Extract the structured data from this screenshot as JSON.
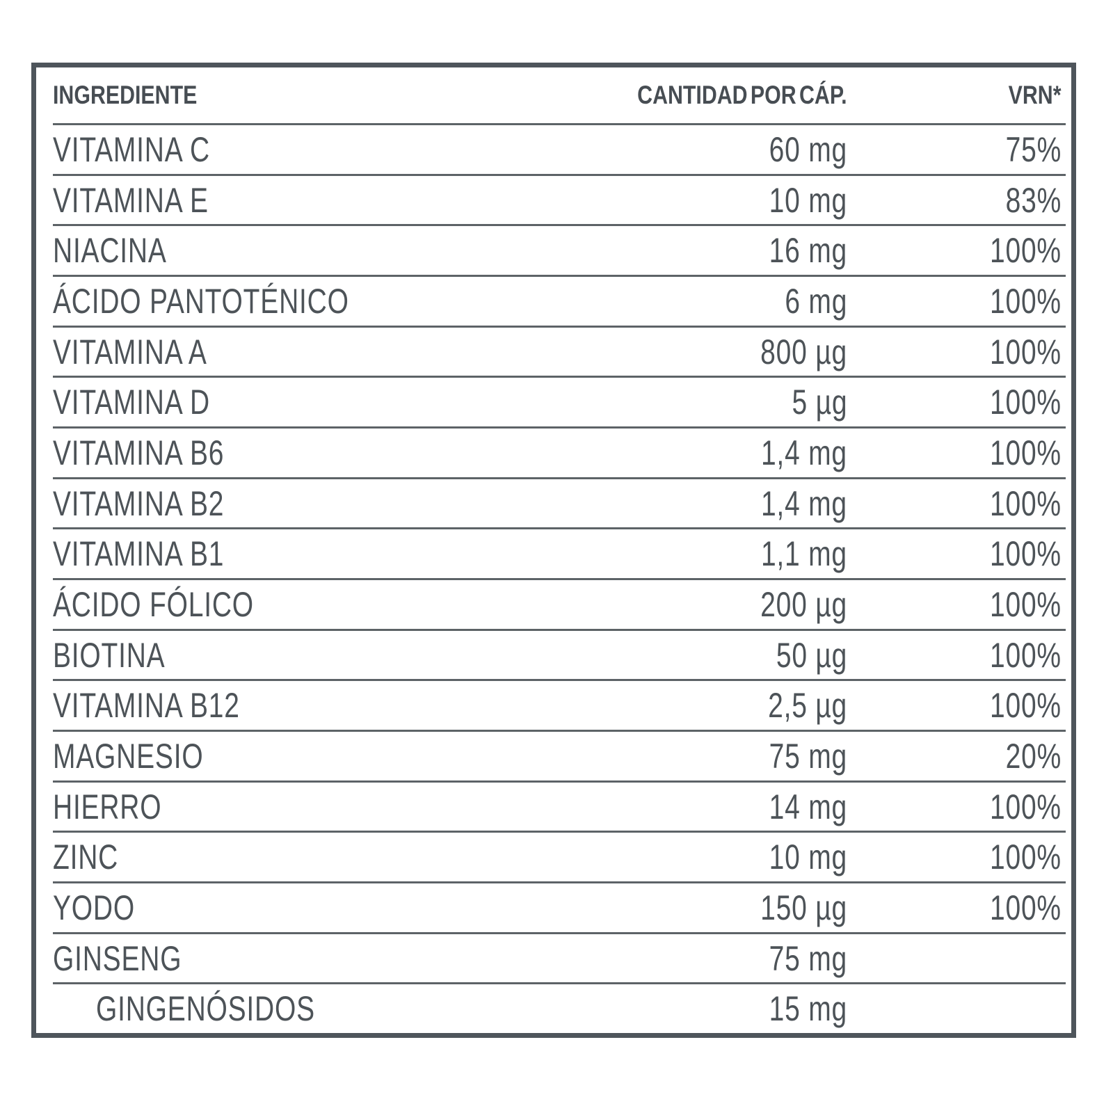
{
  "colors": {
    "ink": "#4d5358",
    "ink_bold": "#474d53",
    "rule": "#5d6367",
    "frame": "#4e555b",
    "paper": "#ffffff"
  },
  "table": {
    "columns": {
      "ingredient": "INGREDIENTE",
      "amount": "CANTIDAD POR CÁP.",
      "vrn": "VRN*"
    },
    "rows": [
      {
        "ingredient": "VITAMINA C",
        "amount": "60 mg",
        "vrn": "75%",
        "indent": false
      },
      {
        "ingredient": "VITAMINA E",
        "amount": "10 mg",
        "vrn": "83%",
        "indent": false
      },
      {
        "ingredient": "NIACINA",
        "amount": "16 mg",
        "vrn": "100%",
        "indent": false
      },
      {
        "ingredient": "ÁCIDO PANTOTÉNICO",
        "amount": "6 mg",
        "vrn": "100%",
        "indent": false
      },
      {
        "ingredient": "VITAMINA A",
        "amount": "800 µg",
        "vrn": "100%",
        "indent": false
      },
      {
        "ingredient": "VITAMINA D",
        "amount": "5 µg",
        "vrn": "100%",
        "indent": false
      },
      {
        "ingredient": "VITAMINA B6",
        "amount": "1,4 mg",
        "vrn": "100%",
        "indent": false
      },
      {
        "ingredient": "VITAMINA B2",
        "amount": "1,4 mg",
        "vrn": "100%",
        "indent": false
      },
      {
        "ingredient": "VITAMINA B1",
        "amount": "1,1 mg",
        "vrn": "100%",
        "indent": false
      },
      {
        "ingredient": "ÁCIDO FÓLICO",
        "amount": "200 µg",
        "vrn": "100%",
        "indent": false
      },
      {
        "ingredient": "BIOTINA",
        "amount": "50 µg",
        "vrn": "100%",
        "indent": false
      },
      {
        "ingredient": "VITAMINA B12",
        "amount": "2,5 µg",
        "vrn": "100%",
        "indent": false
      },
      {
        "ingredient": "MAGNESIO",
        "amount": "75 mg",
        "vrn": "20%",
        "indent": false
      },
      {
        "ingredient": "HIERRO",
        "amount": "14 mg",
        "vrn": "100%",
        "indent": false
      },
      {
        "ingredient": "ZINC",
        "amount": "10 mg",
        "vrn": "100%",
        "indent": false
      },
      {
        "ingredient": "YODO",
        "amount": "150 µg",
        "vrn": "100%",
        "indent": false
      },
      {
        "ingredient": "GINSENG",
        "amount": "75 mg",
        "vrn": "",
        "indent": false
      },
      {
        "ingredient": "GINGENÓSIDOS",
        "amount": "15 mg",
        "vrn": "",
        "indent": true
      }
    ]
  }
}
